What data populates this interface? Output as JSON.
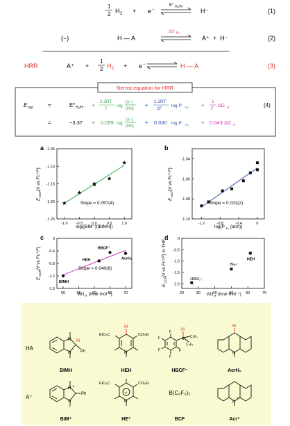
{
  "equations": {
    "eq1": {
      "one": "1",
      "two": "2",
      "h2": "H",
      "h2sub": "2",
      "plus": "+",
      "e": "e",
      "emin": "−",
      "arrow_label": "E°",
      "arrow_label_sub": "H₂/H⁻",
      "hminus": "H⁻",
      "num": "(1)"
    },
    "eq2": {
      "minus": "(−)",
      "ha": "H — A",
      "arrow_label": "ΔG",
      "arrow_label_sub": "H⁻",
      "a": "A⁺",
      "plus": "+",
      "h": "H⁻",
      "num": "(2)"
    },
    "eq3": {
      "label": "HRR",
      "a": "A⁺",
      "plus": "+",
      "one": "1",
      "two": "2",
      "h2": "H",
      "h2sub": "2",
      "e": "e",
      "emin": "−",
      "product": "H — A",
      "num": "(3)"
    },
    "nernst": {
      "title": "Nernst equation for HRR",
      "lhs": "E",
      "lhs_sub": "ocp",
      "row1": {
        "e0": "E°",
        "e0sub": "H₂/H⁻",
        "plus1": "+",
        "t1": "2.3RT",
        "t1d": "F",
        "t1log": "log",
        "t1frac_num": "[A⁺]",
        "t1frac_den": "[HA]",
        "plus2": "+",
        "t2": "2.3RT",
        "t2d": "2F",
        "t2log": "log P",
        "t2sub": "H₂",
        "plus3": "+",
        "f1": "1",
        "fd": "F",
        "dg": "ΔG",
        "dgsub": "H⁻",
        "num": "(4)"
      },
      "row2": {
        "eq": "=",
        "v0": "−3.37",
        "plus1": "+",
        "v1": "0.059",
        "v1log": "log",
        "frac_num": "[A⁺]",
        "frac_den": "[HA]",
        "plus2": "+",
        "v2": "0.030",
        "v2log": "log P",
        "v2sub": "H₂",
        "plus3": "+",
        "v3": "0.043",
        "dg": "ΔG",
        "dgsub": "H⁻"
      }
    }
  },
  "colors": {
    "green": "#3aa84a",
    "blue": "#2c56a8",
    "magenta": "#d23ab8",
    "red": "#e0312d",
    "nernst_red": "#e0312d",
    "panel": "#fafad2"
  },
  "charts": {
    "a": {
      "panel_label": "a",
      "ylabel": "E",
      "ylabel_sub": "OCP",
      "ylabel_rest": " (V vs Fc⁺/⁰)",
      "xlabel": "log([BIM⁺]/[BIMH])",
      "slope": "Slope = 0.057(4)",
      "xticks": [
        "-1.0",
        "-0.5",
        "0.0",
        "0.5",
        "1.0"
      ],
      "yticks": [
        "-1.05",
        "-1.10",
        "-1.15",
        "-1.20",
        "-1.25"
      ]
    },
    "b": {
      "panel_label": "b",
      "ylabel": "E",
      "ylabel_sub": "OCP",
      "ylabel_rest": " (V vs Fc⁺/⁰)",
      "xlabel": "log[P",
      "xlabel_sub": "H₂",
      "xlabel_rest": " (atm)]",
      "slope": "Slope = 0.031(2)",
      "xticks": [
        "-1.2",
        "-0.8",
        "-0.4",
        "0"
      ],
      "yticks": [
        "-1.04",
        "-1.06",
        "-1.08",
        "-1.10"
      ]
    },
    "c": {
      "panel_label": "c",
      "ylabel": "E",
      "ylabel_sub": "OCP",
      "ylabel_rest": " (V vs Fc⁺/⁰)",
      "xlabel": "ΔG",
      "xlabel_sub": "H⁻",
      "xlabel_rest": " (kcal mol⁻¹)",
      "slope": "Slope = 0.040(8)",
      "xticks": [
        "50",
        "55",
        "60",
        "65",
        "70"
      ],
      "yticks": [
        "0",
        "-0.4",
        "-0.8",
        "-1.2",
        "-1.6"
      ],
      "points": [
        "BIMH",
        "HEH",
        "HBCF⁻",
        "AcrH₂"
      ]
    },
    "d": {
      "panel_label": "d",
      "ylabel": "E",
      "ylabel_sub": "OCP",
      "ylabel_rest": " (V vs Fc⁺/⁰) in THF",
      "xlabel": "ΔG",
      "xlabel_sub": "H⁻",
      "xlabel_rest": " (kcal mol⁻¹)",
      "xticks": [
        "20",
        "30",
        "40",
        "50",
        "60",
        "70"
      ],
      "yticks": [
        "0",
        "-0.5",
        "-1.0",
        "-1.5",
        "-2.0"
      ],
      "points": [
        "HBEt₃⁻",
        "BH₄⁻",
        "HEH"
      ]
    }
  },
  "chart_data": [
    {
      "type": "scatter",
      "id": "a",
      "xlabel": "log([BIM⁺]/[BIMH])",
      "ylabel": "E_OCP (V vs Fc⁺/⁰)",
      "xlim": [
        -1.25,
        1.25
      ],
      "ylim": [
        -1.25,
        -1.05
      ],
      "series": [
        {
          "name": "data",
          "x": [
            -1.0,
            -0.5,
            0.0,
            0.0,
            0.5,
            1.0
          ],
          "y": [
            -1.205,
            -1.175,
            -1.15,
            -1.152,
            -1.135,
            -1.09
          ]
        }
      ],
      "fit_slope": 0.057
    },
    {
      "type": "scatter",
      "id": "b",
      "xlabel": "log[P_H2 (atm)]",
      "ylabel": "E_OCP (V vs Fc⁺/⁰)",
      "xlim": [
        -1.4,
        0.15
      ],
      "ylim": [
        -1.1,
        -1.03
      ],
      "series": [
        {
          "name": "data",
          "x": [
            -1.2,
            -1.05,
            -0.75,
            -0.55,
            -0.3,
            -0.15,
            0.0,
            0.0
          ],
          "y": [
            -1.087,
            -1.083,
            -1.072,
            -1.07,
            -1.062,
            -1.054,
            -1.051,
            -1.044
          ]
        }
      ],
      "fit_slope": 0.031
    },
    {
      "type": "scatter",
      "id": "c",
      "xlabel": "ΔG_H⁻ (kcal mol⁻¹)",
      "ylabel": "E_OCP (V vs Fc⁺/⁰)",
      "xlim": [
        48,
        72
      ],
      "ylim": [
        -1.6,
        0
      ],
      "series": [
        {
          "name": "data",
          "labels": [
            "BIMH",
            "HEH",
            "HBCF⁻",
            "AcrH₂"
          ],
          "x": [
            50,
            61.5,
            65,
            70
          ],
          "y": [
            -1.2,
            -0.72,
            -0.45,
            -0.48
          ]
        }
      ],
      "fit_slope": 0.04
    },
    {
      "type": "scatter",
      "id": "d",
      "xlabel": "ΔG_H⁻ (kcal mol⁻¹)",
      "ylabel": "E_OCP (V vs Fc⁺/⁰) in THF",
      "xlim": [
        20,
        70
      ],
      "ylim": [
        -2.2,
        0
      ],
      "series": [
        {
          "name": "data",
          "labels": [
            "HBEt₃⁻",
            "BH₄⁻",
            "HEH"
          ],
          "x": [
            26,
            50,
            61.5
          ],
          "y": [
            -1.95,
            -1.35,
            -0.65
          ]
        }
      ]
    }
  ],
  "structures": {
    "row_ha": "HA",
    "row_a": "A⁺",
    "ha_names": [
      "BIMH",
      "HEH",
      "HBCF⁻",
      "AcrH₂"
    ],
    "a_names": [
      "BIM⁺",
      "HE⁺",
      "BCF",
      "Acr⁺"
    ],
    "bcf_formula": "B(C₆F₅)₃",
    "atom_H": "H",
    "atom_N": "N",
    "atom_Ph": "Ph",
    "atom_B": "B",
    "atom_F": "F",
    "co2et": "CO₂Et",
    "eto2c": "EtO₂C",
    "c6f5": "C₆F₅",
    "plus": "+"
  }
}
